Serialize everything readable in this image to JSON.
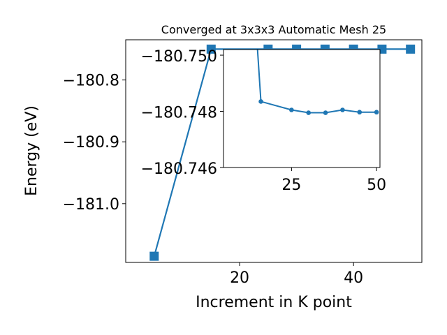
{
  "chart_data": [
    {
      "type": "line",
      "title": "Converged at 3x3x3 Automatic Mesh 25",
      "xlabel": "Increment in K point",
      "ylabel": "Energy (eV)",
      "xlim": [
        0,
        52
      ],
      "ylim": [
        -181.095,
        -180.735
      ],
      "xticks": [
        20,
        40
      ],
      "yticks": [
        -181.0,
        -180.9,
        -180.8
      ],
      "ytick_labels": [
        "−181.0",
        "−180.9",
        "−180.8"
      ],
      "marker": "square",
      "color": "#1f77b4",
      "grid": false,
      "series": [
        {
          "x": [
            5,
            15,
            25,
            30,
            35,
            40,
            45,
            50
          ],
          "y": [
            -181.085,
            -180.7501,
            -180.7501,
            -180.7501,
            -180.7501,
            -180.7501,
            -180.7501,
            -180.7501
          ]
        }
      ]
    },
    {
      "type": "line",
      "role": "inset",
      "xlim": [
        5,
        51
      ],
      "ylim": [
        -180.746,
        -180.7502
      ],
      "xticks": [
        25,
        50
      ],
      "yticks": [
        -180.75,
        -180.748,
        -180.746
      ],
      "ytick_labels": [
        "−180.750",
        "−180.748",
        "−180.746"
      ],
      "marker": "circle",
      "color": "#1f77b4",
      "series": [
        {
          "x": [
            15,
            16,
            25,
            30,
            35,
            40,
            45,
            50
          ],
          "y": [
            -180.7502,
            -180.7483,
            -180.748,
            -180.748,
            -180.748,
            -180.748,
            -180.748,
            -180.748
          ],
          "y_display": [
            -180.7502,
            -180.74835,
            -180.74805,
            -180.74795,
            -180.74795,
            -180.74805,
            -180.74797,
            -180.74797
          ]
        }
      ]
    }
  ]
}
